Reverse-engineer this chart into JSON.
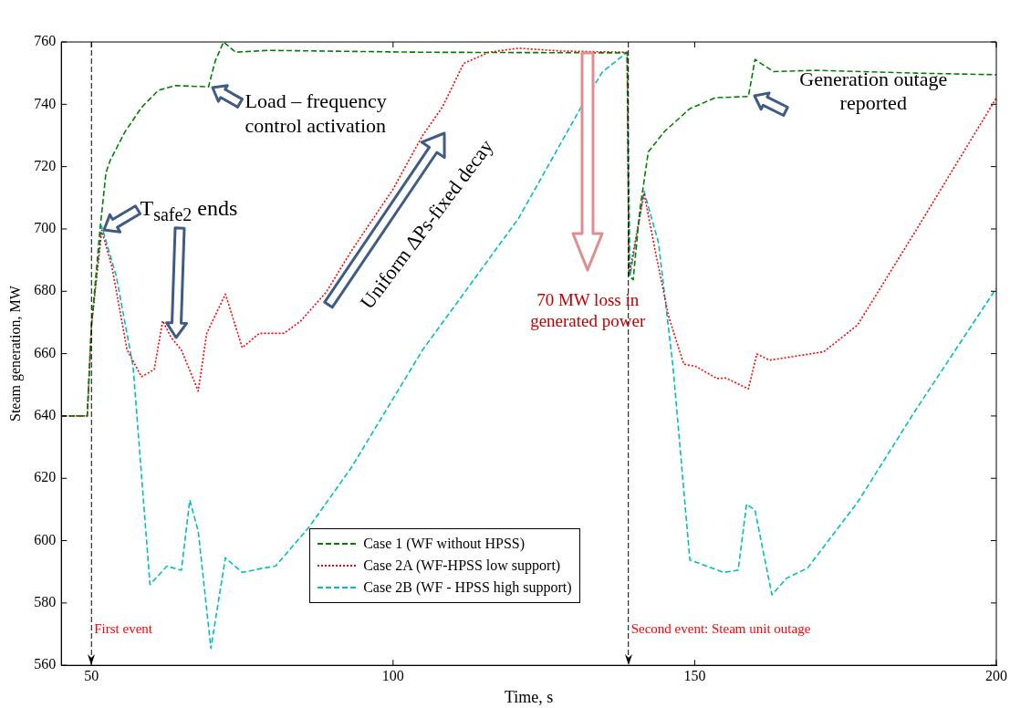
{
  "chart_data": {
    "type": "line",
    "xlabel": "Time, s",
    "ylabel": "Steam generation, MW",
    "xlim": [
      45,
      200
    ],
    "xticks": [
      50,
      100,
      150,
      200
    ],
    "ylim": [
      560,
      760
    ],
    "yticks": [
      560,
      580,
      600,
      620,
      640,
      660,
      680,
      700,
      720,
      740,
      760
    ],
    "grid": false,
    "legend": "bottom",
    "marker": "none",
    "series": [
      {
        "name": "Case 1 (WF without HPSS)",
        "color": "#008000",
        "line_style": "dashed",
        "x": [
          45,
          49.3,
          50,
          51.4,
          52.4,
          53.1,
          55.5,
          58.3,
          61.1,
          63.9,
          69.4,
          70.5,
          71.9,
          73.9,
          79.2,
          104.9,
          138.8,
          139.1,
          139.8,
          140.9,
          142.3,
          145,
          149.2,
          153.4,
          158.9,
          160,
          161,
          163.1,
          170,
          186.7,
          200
        ],
        "values": [
          640,
          640,
          669,
          699.6,
          718,
          722,
          731,
          739,
          744.5,
          746,
          745.6,
          753.8,
          760,
          756.7,
          757.3,
          756.7,
          756.5,
          685,
          683.7,
          706,
          724.7,
          731.3,
          738.6,
          742.1,
          742.5,
          754.4,
          753.1,
          750.5,
          750.9,
          750,
          749.5
        ]
      },
      {
        "name": "Case 2A (WF-HPSS low support)",
        "color": "#ff0000",
        "line_style": "dotted",
        "x": [
          45,
          49.3,
          50,
          51.7,
          53.4,
          55.9,
          58.3,
          60.4,
          61.8,
          63.2,
          64.9,
          67.7,
          69.1,
          72.2,
          75,
          77.8,
          81.9,
          84.7,
          88.9,
          93.1,
          100,
          104.9,
          108.2,
          111.7,
          115.9,
          120.8,
          127.7,
          138.8,
          139.1,
          141.6,
          143.6,
          145.7,
          148.2,
          150.2,
          153.7,
          155.1,
          158.9,
          160.3,
          162.4,
          171.4,
          177,
          186.7,
          200
        ],
        "values": [
          640,
          640,
          669,
          699.6,
          687.7,
          661.2,
          652.6,
          654.9,
          670.5,
          665.2,
          661.2,
          648,
          666.5,
          679.1,
          661.9,
          666.5,
          666.5,
          670.5,
          679.7,
          693,
          712.8,
          730,
          739.2,
          753.1,
          756.7,
          758,
          757.1,
          756.7,
          685,
          711.5,
          691.6,
          671.8,
          656.6,
          655.9,
          652,
          652.2,
          648.7,
          659.9,
          657.9,
          660.6,
          669.2,
          699.6,
          742
        ]
      },
      {
        "name": "Case 2B (WF - HPSS high support)",
        "color": "#00bfbf",
        "line_style": "dashed",
        "x": [
          45,
          49.3,
          50,
          51.7,
          54.1,
          56.9,
          59.7,
          62.5,
          64.9,
          66.3,
          67.7,
          69.8,
          72.2,
          75,
          78.5,
          80.5,
          86.1,
          93.1,
          104.9,
          120.8,
          131.2,
          134.7,
          138.8,
          139.3,
          141.6,
          144,
          146.4,
          149.2,
          152,
          154.8,
          157.2,
          158.6,
          160,
          162.8,
          165.2,
          168.7,
          177,
          186.7,
          200
        ],
        "values": [
          640,
          640,
          669,
          700.9,
          685,
          655.9,
          585.9,
          591.8,
          590.5,
          613,
          603,
          565.4,
          594.5,
          589.8,
          591.2,
          591.8,
          604.4,
          623.5,
          661.2,
          703.4,
          739.2,
          750.4,
          756.7,
          685,
          712.1,
          695.6,
          655.9,
          593.8,
          591.8,
          589.8,
          590.5,
          611.7,
          609.7,
          582.6,
          587.9,
          591.2,
          612.3,
          642.1,
          681
        ]
      }
    ],
    "ref_lines": [
      {
        "axis": "x",
        "value": 50,
        "label": "First event",
        "color": "#000000",
        "line_style": "dashed"
      },
      {
        "axis": "x",
        "value": 139,
        "label": "Second event: Steam unit outage",
        "color": "#000000",
        "line_style": "dashed"
      }
    ],
    "annotations": [
      {
        "text": "T$_{safe2}$ ends",
        "x": 51.7,
        "y": 699
      },
      {
        "text": "Load – frequency control activation",
        "x": 69.4,
        "y": 745.6
      },
      "Uniform ΔPs-fixed decay",
      "70 MW loss in generated power",
      {
        "text": "Generation outage reported",
        "x": 158.9,
        "y": 742.5
      }
    ]
  }
}
